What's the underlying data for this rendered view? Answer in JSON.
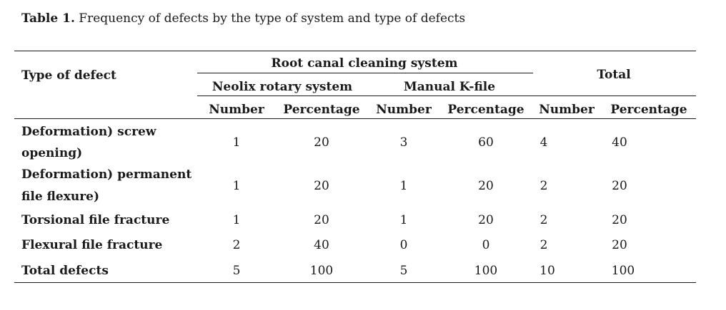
{
  "caption": {
    "label": "Table 1.",
    "text": "Frequency of defects by the type of system and type of defects"
  },
  "header": {
    "type_of_defect": "Type of defect",
    "group": "Root canal cleaning system",
    "total": "Total",
    "systems": [
      "Neolix rotary system",
      "Manual K-file"
    ],
    "sub": [
      "Number",
      "Percentage",
      "Number",
      "Percentage",
      "Number",
      "Percentage"
    ]
  },
  "rows": [
    {
      "label": [
        "Deformation) screw",
        "opening)"
      ],
      "values": [
        "1",
        "20",
        "3",
        "60",
        "4",
        "40"
      ]
    },
    {
      "label": [
        "Deformation) permanent",
        "file flexure)"
      ],
      "values": [
        "1",
        "20",
        "1",
        "20",
        "2",
        "20"
      ]
    },
    {
      "label": [
        "Torsional file fracture"
      ],
      "values": [
        "1",
        "20",
        "1",
        "20",
        "2",
        "20"
      ]
    },
    {
      "label": [
        "Flexural file fracture"
      ],
      "values": [
        "2",
        "40",
        "0",
        "0",
        "2",
        "20"
      ]
    },
    {
      "label": [
        "Total defects"
      ],
      "values": [
        "5",
        "100",
        "5",
        "100",
        "10",
        "100"
      ]
    }
  ]
}
